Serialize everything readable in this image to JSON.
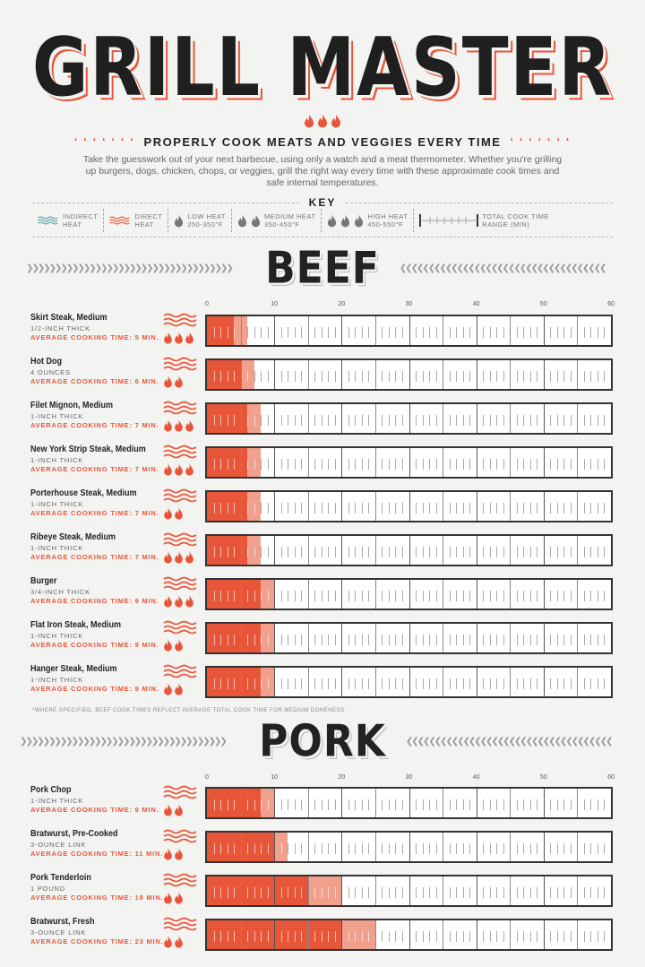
{
  "header": {
    "title": "GRILL MASTER",
    "subtitle": "PROPERLY COOK MEATS AND VEGGIES EVERY TIME",
    "intro": "Take the guesswork out of your next barbecue, using only a watch and a meat thermometer. Whether you're grilling up burgers, dogs, chicken, chops, or veggies, grill the right way every time with these approximate cook times and safe internal temperatures."
  },
  "key": {
    "title": "KEY",
    "items": [
      {
        "icon": "wave-icon",
        "line1": "INDIRECT",
        "line2": "HEAT"
      },
      {
        "icon": "wave-icon",
        "line1": "DIRECT",
        "line2": "HEAT"
      },
      {
        "icon": "flame-icon",
        "line1": "LOW HEAT",
        "line2": "250-350°F"
      },
      {
        "icon": "flame-icon",
        "line1": "MEDIUM HEAT",
        "line2": "350-450°F"
      },
      {
        "icon": "flame-icon",
        "line1": "HIGH HEAT",
        "line2": "450-550°F"
      },
      {
        "icon": "range-bar-icon",
        "line1": "TOTAL COOK TIME",
        "line2": "RANGE (MIN)"
      }
    ]
  },
  "colors": {
    "accent": "#e8563a",
    "light": "#f2a08e",
    "indirect": "#5aa0a0"
  },
  "chart_data": [
    {
      "type": "bar",
      "title": "BEEF",
      "xlim": [
        0,
        60
      ],
      "ticks": [
        "0",
        "10",
        "20",
        "30",
        "40",
        "50",
        "60"
      ],
      "footnote": "*WHERE SPECIFIED, BEEF COOK TIMES REFLECT AVERAGE TOTAL COOK TIME FOR MEDIUM DONENESS.",
      "items": [
        {
          "name": "Skirt Steak, Medium",
          "thickness": "1/2-INCH THICK",
          "avg_label": "AVERAGE COOKING TIME: 5 MIN.",
          "min": 4,
          "max": 6,
          "flames": 3
        },
        {
          "name": "Hot Dog",
          "thickness": "4 OUNCES",
          "avg_label": "AVERAGE COOKING TIME: 6 MIN.",
          "min": 5,
          "max": 7,
          "flames": 2
        },
        {
          "name": "Filet Mignon, Medium",
          "thickness": "1-INCH THICK",
          "avg_label": "AVERAGE COOKING TIME: 7 MIN.",
          "min": 6,
          "max": 8,
          "flames": 3
        },
        {
          "name": "New York Strip Steak, Medium",
          "thickness": "1-INCH THICK",
          "avg_label": "AVERAGE COOKING TIME: 7 MIN.",
          "min": 6,
          "max": 8,
          "flames": 3
        },
        {
          "name": "Porterhouse Steak, Medium",
          "thickness": "1-INCH THICK",
          "avg_label": "AVERAGE COOKING TIME: 7 MIN.",
          "min": 6,
          "max": 8,
          "flames": 2
        },
        {
          "name": "Ribeye Steak, Medium",
          "thickness": "1-INCH THICK",
          "avg_label": "AVERAGE COOKING TIME: 7 MIN.",
          "min": 6,
          "max": 8,
          "flames": 3
        },
        {
          "name": "Burger",
          "thickness": "3/4-INCH THICK",
          "avg_label": "AVERAGE COOKING TIME: 9 MIN.",
          "min": 8,
          "max": 10,
          "flames": 3
        },
        {
          "name": "Flat Iron Steak, Medium",
          "thickness": "1-INCH THICK",
          "avg_label": "AVERAGE COOKING TIME: 9 MIN.",
          "min": 8,
          "max": 10,
          "flames": 2
        },
        {
          "name": "Hanger Steak, Medium",
          "thickness": "1-INCH THICK",
          "avg_label": "AVERAGE COOKING TIME: 9 MIN.",
          "min": 8,
          "max": 10,
          "flames": 2
        }
      ]
    },
    {
      "type": "bar",
      "title": "PORK",
      "xlim": [
        0,
        60
      ],
      "ticks": [
        "0",
        "10",
        "20",
        "30",
        "40",
        "50",
        "60"
      ],
      "items": [
        {
          "name": "Pork Chop",
          "thickness": "1-INCH THICK",
          "avg_label": "AVERAGE COOKING TIME: 9 MIN.",
          "min": 8,
          "max": 10,
          "flames": 2
        },
        {
          "name": "Bratwurst, Pre-Cooked",
          "thickness": "3-OUNCE LINK",
          "avg_label": "AVERAGE COOKING TIME: 11 MIN.",
          "min": 10,
          "max": 12,
          "flames": 2
        },
        {
          "name": "Pork Tenderloin",
          "thickness": "1 POUND",
          "avg_label": "AVERAGE COOKING TIME: 18 MIN.",
          "min": 15,
          "max": 20,
          "flames": 2
        },
        {
          "name": "Bratwurst, Fresh",
          "thickness": "3-OUNCE LINK",
          "avg_label": "AVERAGE COOKING TIME: 23 MIN.",
          "min": 20,
          "max": 25,
          "flames": 2
        }
      ]
    }
  ]
}
